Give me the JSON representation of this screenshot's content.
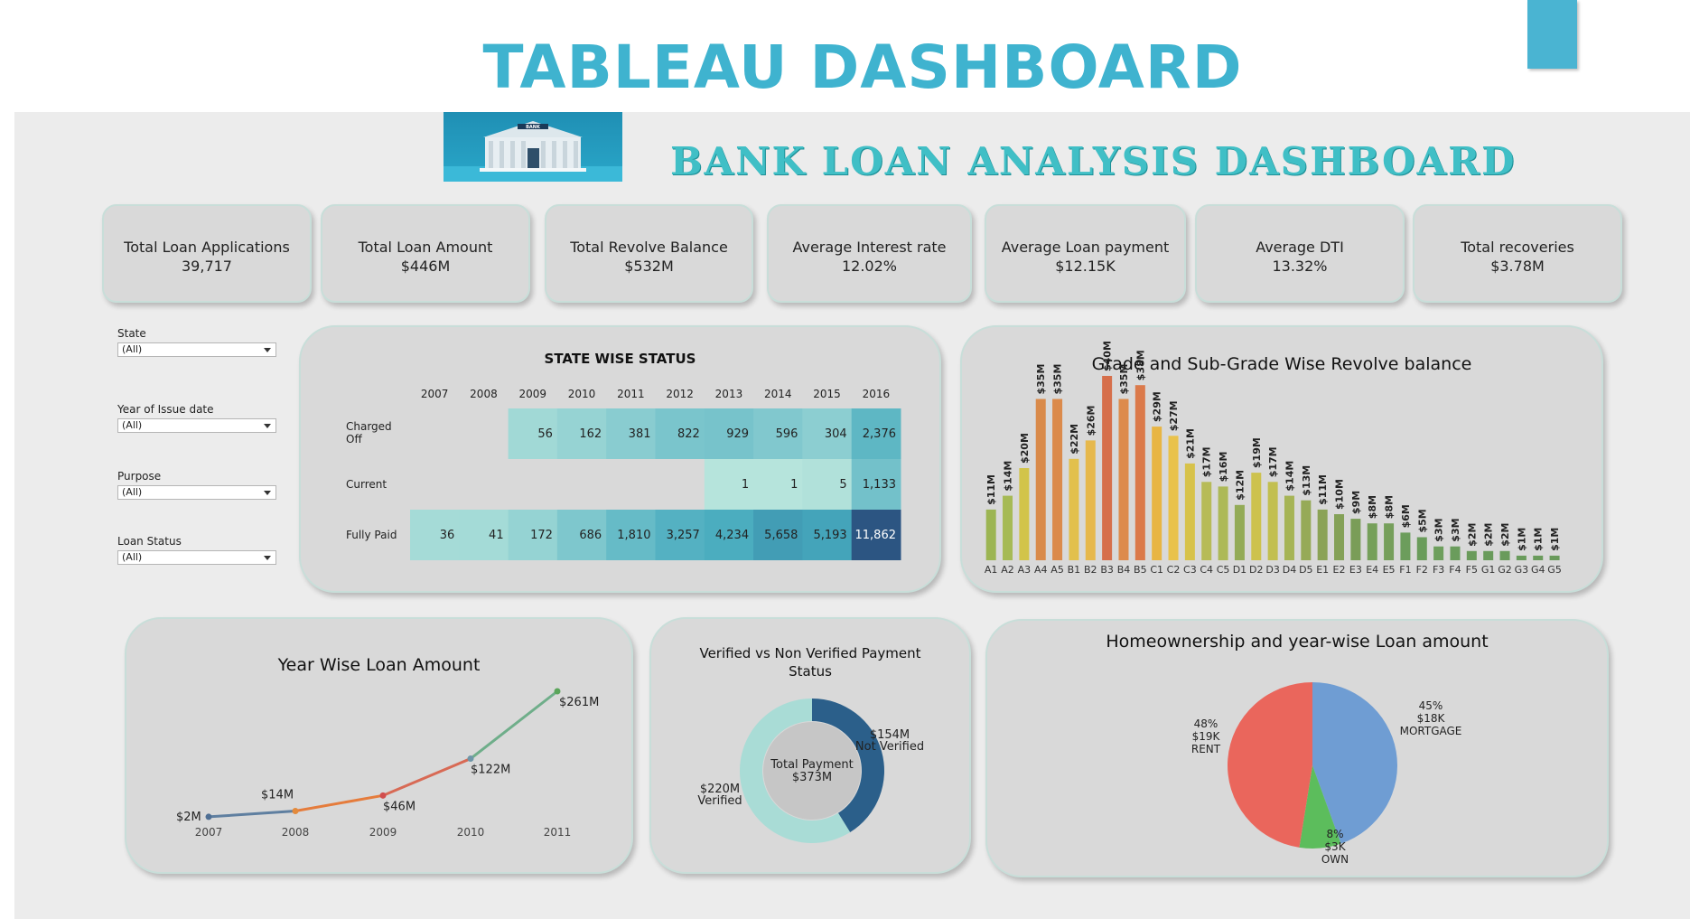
{
  "slide_title": "TABLEAU DASHBOARD",
  "dashboard_title": "BANK LOAN ANALYSIS DASHBOARD",
  "bank_sign": "BANK",
  "kpis": [
    {
      "label": "Total Loan Applications",
      "value": "39,717"
    },
    {
      "label": "Total Loan Amount",
      "value": "$446M"
    },
    {
      "label": "Total Revolve Balance",
      "value": "$532M"
    },
    {
      "label": "Average Interest rate",
      "value": "12.02%"
    },
    {
      "label": "Average Loan payment",
      "value": "$12.15K"
    },
    {
      "label": "Average DTI",
      "value": "13.32%"
    },
    {
      "label": "Total recoveries",
      "value": "$3.78M"
    }
  ],
  "filters": [
    {
      "label": "State",
      "value": "(All)"
    },
    {
      "label": "Year of Issue date",
      "value": "(All)"
    },
    {
      "label": "Purpose",
      "value": "(All)"
    },
    {
      "label": "Loan Status",
      "value": "(All)"
    }
  ],
  "colors": {
    "accent": "#3fb3cf",
    "title_teal": "#40bfc6",
    "card_bg": "#d9d9d9",
    "canvas_bg": "#ececec"
  },
  "state_wise": {
    "title": "STATE WISE STATUS",
    "years": [
      "2007",
      "2008",
      "2009",
      "2010",
      "2011",
      "2012",
      "2013",
      "2014",
      "2015",
      "2016"
    ],
    "rows": [
      {
        "label": "Charged Off",
        "cells": [
          "",
          "",
          "56",
          "162",
          "381",
          "822",
          "929",
          "596",
          "304",
          "2,376"
        ]
      },
      {
        "label": "Current",
        "cells": [
          "",
          "",
          "",
          "",
          "",
          "",
          "1",
          "1",
          "5",
          "1,133"
        ]
      },
      {
        "label": "Fully Paid",
        "cells": [
          "36",
          "41",
          "172",
          "686",
          "1,810",
          "3,257",
          "4,234",
          "5,658",
          "5,193",
          "11,862"
        ]
      }
    ]
  },
  "grade_chart": {
    "type": "bar",
    "title": "Grade and Sub-Grade Wise Revolve balance",
    "categories": [
      "A1",
      "A2",
      "A3",
      "A4",
      "A5",
      "B1",
      "B2",
      "B3",
      "B4",
      "B5",
      "C1",
      "C2",
      "C3",
      "C4",
      "C5",
      "D1",
      "D2",
      "D3",
      "D4",
      "D5",
      "E1",
      "E2",
      "E3",
      "E4",
      "E5",
      "F1",
      "F2",
      "F3",
      "F4",
      "F5",
      "G1",
      "G2",
      "G3",
      "G4",
      "G5"
    ],
    "values": [
      11,
      14,
      20,
      35,
      35,
      22,
      26,
      40,
      35,
      38,
      29,
      27,
      21,
      17,
      16,
      12,
      19,
      17,
      14,
      13,
      11,
      10,
      9,
      8,
      8,
      6,
      5,
      3,
      3,
      2,
      2,
      2,
      1,
      1,
      1
    ],
    "labels": [
      "$11M",
      "$14M",
      "$20M",
      "$35M",
      "$35M",
      "$22M",
      "$26M",
      "$40M",
      "$35M",
      "$38M",
      "$29M",
      "$27M",
      "$21M",
      "$17M",
      "$16M",
      "$12M",
      "$19M",
      "$17M",
      "$14M",
      "$13M",
      "$11M",
      "$10M",
      "$9M",
      "$8M",
      "$8M",
      "$6M",
      "$5M",
      "$3M",
      "$3M",
      "$2M",
      "$2M",
      "$2M",
      "$1M",
      "$1M",
      "$1M"
    ],
    "colors": [
      "#9cb553",
      "#a6ba55",
      "#d2c44a",
      "#d98a4a",
      "#db8a4b",
      "#e2c04c",
      "#e6b84c",
      "#d66f4b",
      "#dd8b4c",
      "#db7a4b",
      "#e8b544",
      "#e9c24b",
      "#d7c24b",
      "#b7bb57",
      "#adb957",
      "#93ab57",
      "#cdc24e",
      "#c2bf50",
      "#a6b456",
      "#96aa57",
      "#8ba356",
      "#84a157",
      "#7a9d58",
      "#76a05a",
      "#769f5b",
      "#6c9d5c",
      "#6a9c5b",
      "#6e9f5d",
      "#6a9c5c",
      "#6a9b5b",
      "#699b5b",
      "#6a9b5b",
      "#699b5b",
      "#6a9b5b",
      "#699a5b"
    ]
  },
  "year_chart": {
    "type": "line",
    "title": "Year Wise Loan Amount",
    "x": [
      "2007",
      "2008",
      "2009",
      "2010",
      "2011"
    ],
    "values": [
      2,
      14,
      46,
      122,
      261
    ],
    "labels": [
      "$2M",
      "$14M",
      "$46M",
      "$122M",
      "$261M"
    ]
  },
  "verified_chart": {
    "type": "pie",
    "title": "Verified vs Non Verified Payment Status",
    "center_label": "Total Payment",
    "center_value": "$373M",
    "slices": [
      {
        "name": "Not Verified",
        "value": 154,
        "label": "$154M",
        "color": "#2b5f8a"
      },
      {
        "name": "Verified",
        "value": 220,
        "label": "$220M",
        "color": "#a9dcd6"
      }
    ]
  },
  "home_chart": {
    "type": "pie",
    "title": "Homeownership and year-wise Loan amount",
    "slices": [
      {
        "name": "MORTGAGE",
        "percent": "45%",
        "amount": "$18K",
        "value": 45,
        "color": "#6f9dd3"
      },
      {
        "name": "OWN",
        "percent": "8%",
        "amount": "$3K",
        "value": 8,
        "color": "#5cbd5c"
      },
      {
        "name": "RENT",
        "percent": "48%",
        "amount": "$19K",
        "value": 48,
        "color": "#ea665c"
      }
    ]
  }
}
